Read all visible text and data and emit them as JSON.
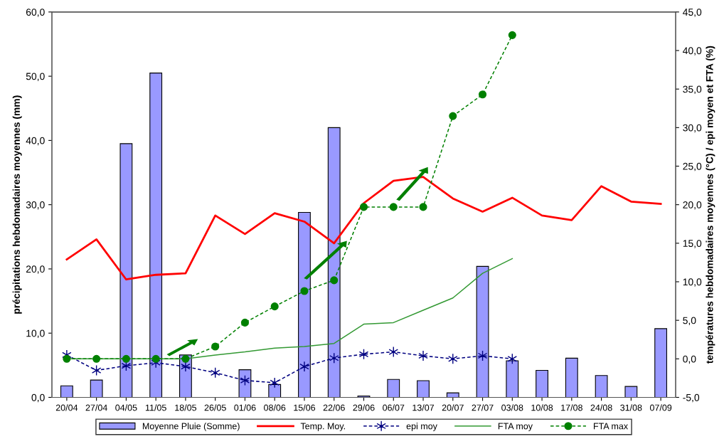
{
  "chart_data": {
    "type": "bar",
    "ylabel": "précipitations hebdomadaires moyennes (mm)",
    "y2label": "températures hebdomadaires moyennes (°C) / epi moyen et FTA (%)",
    "categories": [
      "20/04",
      "27/04",
      "04/05",
      "11/05",
      "18/05",
      "26/05",
      "01/06",
      "08/06",
      "15/06",
      "22/06",
      "29/06",
      "06/07",
      "13/07",
      "20/07",
      "27/07",
      "03/08",
      "10/08",
      "17/08",
      "24/08",
      "31/08",
      "07/09"
    ],
    "series": [
      {
        "name": "Moyenne Pluie (Somme)",
        "color": "#9999ff",
        "values": [
          1.8,
          2.7,
          39.5,
          50.5,
          6.6,
          0,
          4.3,
          2.0,
          28.8,
          42.0,
          0.2,
          2.8,
          2.6,
          0.7,
          20.4,
          5.7,
          4.2,
          6.1,
          3.4,
          1.7,
          10.7
        ]
      },
      {
        "name": "Temp. Moy.",
        "type": "line",
        "axis": "y2",
        "color": "#ff0000",
        "marker": "none",
        "line_style": "solid",
        "values": [
          12.9,
          15.5,
          10.3,
          10.9,
          11.1,
          18.6,
          16.2,
          18.9,
          17.8,
          15.0,
          20.2,
          23.1,
          23.6,
          20.8,
          19.1,
          20.9,
          18.6,
          18.0,
          22.4,
          20.4,
          20.1
        ]
      },
      {
        "name": "epi moy",
        "type": "line",
        "axis": "y2",
        "color": "#000080",
        "marker": "cross",
        "line_style": "dashed",
        "values": [
          0.5,
          -1.5,
          -0.9,
          -0.5,
          -1.0,
          -1.8,
          -2.8,
          -3.1,
          -1.0,
          0.1,
          0.6,
          0.9,
          0.4,
          0.0,
          0.4,
          0.0,
          null,
          null,
          null,
          null,
          null
        ]
      },
      {
        "name": "FTA moy",
        "type": "line",
        "axis": "y2",
        "color": "#339933",
        "marker": "none",
        "line_style": "solid",
        "values": [
          0,
          0,
          0,
          0,
          0,
          0.5,
          0.9,
          1.4,
          1.6,
          2.0,
          4.5,
          4.7,
          6.3,
          7.9,
          11.1,
          13.0,
          null,
          null,
          null,
          null,
          null
        ]
      },
      {
        "name": "FTA max",
        "type": "line",
        "axis": "y2",
        "color": "#008000",
        "marker": "circle",
        "line_style": "dashed",
        "values": [
          0,
          0,
          0,
          0,
          0,
          1.6,
          4.7,
          6.8,
          8.8,
          10.2,
          19.7,
          19.7,
          19.7,
          31.5,
          34.3,
          42.0,
          null,
          null,
          null,
          null,
          null
        ]
      }
    ],
    "ylim": [
      0,
      60
    ],
    "yticks": [
      {
        "value": 0,
        "label": "0,0"
      },
      {
        "value": 10,
        "label": "10,0"
      },
      {
        "value": 20,
        "label": "20,0"
      },
      {
        "value": 30,
        "label": "30,0"
      },
      {
        "value": 40,
        "label": "40,0"
      },
      {
        "value": 50,
        "label": "50,0"
      },
      {
        "value": 60,
        "label": "60,0"
      }
    ],
    "y2lim": [
      -5,
      45
    ],
    "y2ticks": [
      {
        "value": -5,
        "label": "-5,0"
      },
      {
        "value": 0,
        "label": "0,0"
      },
      {
        "value": 5,
        "label": "5,0"
      },
      {
        "value": 10,
        "label": "10,0"
      },
      {
        "value": 15,
        "label": "15,0"
      },
      {
        "value": 20,
        "label": "20,0"
      },
      {
        "value": 25,
        "label": "25,0"
      },
      {
        "value": 30,
        "label": "30,0"
      },
      {
        "value": 35,
        "label": "35,0"
      },
      {
        "value": 40,
        "label": "40,0"
      },
      {
        "value": 45,
        "label": "45,0"
      }
    ],
    "grid": false,
    "legend": "bottom"
  }
}
